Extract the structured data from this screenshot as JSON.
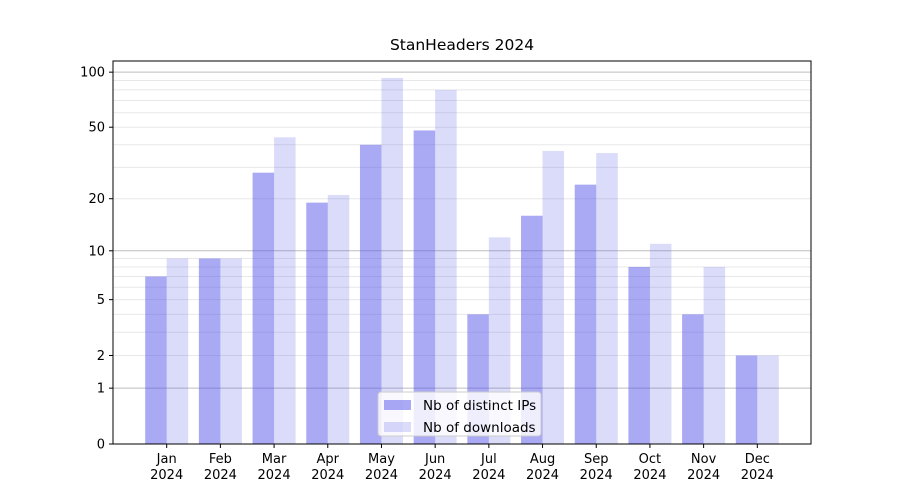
{
  "figure": {
    "background": "#ffffff",
    "spine_color": "#000000",
    "major_grid_color": "#bdbdbd",
    "minor_grid_color": "#e8e8e8"
  },
  "chart_data": {
    "type": "bar",
    "title": "StanHeaders 2024",
    "xlabel": "",
    "ylabel": "",
    "categories": [
      "Jan 2024",
      "Feb 2024",
      "Mar 2024",
      "Apr 2024",
      "May 2024",
      "Jun 2024",
      "Jul 2024",
      "Aug 2024",
      "Sep 2024",
      "Oct 2024",
      "Nov 2024",
      "Dec 2024"
    ],
    "x_ticks": [
      {
        "month": "Jan",
        "year": "2024"
      },
      {
        "month": "Feb",
        "year": "2024"
      },
      {
        "month": "Mar",
        "year": "2024"
      },
      {
        "month": "Apr",
        "year": "2024"
      },
      {
        "month": "May",
        "year": "2024"
      },
      {
        "month": "Jun",
        "year": "2024"
      },
      {
        "month": "Jul",
        "year": "2024"
      },
      {
        "month": "Aug",
        "year": "2024"
      },
      {
        "month": "Sep",
        "year": "2024"
      },
      {
        "month": "Oct",
        "year": "2024"
      },
      {
        "month": "Nov",
        "year": "2024"
      },
      {
        "month": "Dec",
        "year": "2024"
      }
    ],
    "series": [
      {
        "name": "Nb of distinct IPs",
        "color": "rgba(83,83,233,0.50)",
        "color_on_white": "#a9a9f4",
        "values": [
          7,
          9,
          28,
          19,
          40,
          48,
          4,
          16,
          24,
          8,
          4,
          2
        ]
      },
      {
        "name": "Nb of downloads",
        "color": "rgba(83,83,233,0.21)",
        "color_on_white": "#dcdcf8",
        "values": [
          9,
          9,
          44,
          21,
          93,
          80,
          12,
          37,
          36,
          11,
          8,
          2
        ]
      }
    ],
    "y_axis": {
      "scale": "log1p",
      "ticks": [
        0,
        1,
        2,
        5,
        10,
        20,
        50,
        100
      ],
      "major_gridlines": [
        1,
        10,
        100
      ],
      "minor_gridlines": [
        2,
        3,
        4,
        5,
        6,
        7,
        8,
        9,
        20,
        30,
        40,
        50,
        60,
        70,
        80,
        90
      ],
      "top_value": 115
    },
    "grid": "horizontal",
    "legend": {
      "position": "bottom-center",
      "entries": [
        "Nb of distinct IPs",
        "Nb of downloads"
      ]
    }
  }
}
